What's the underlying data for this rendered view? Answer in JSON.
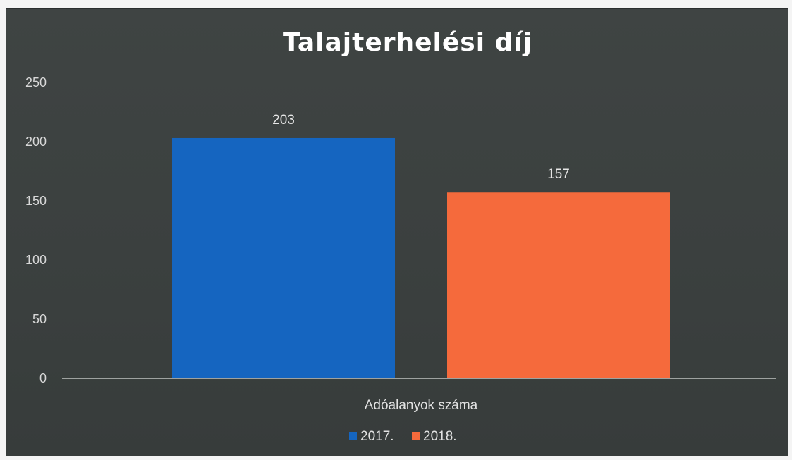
{
  "chart_data": {
    "type": "bar",
    "title": "Talajterhelési díj",
    "categories": [
      "Adóalanyok száma"
    ],
    "series": [
      {
        "name": "2017.",
        "values": [
          203
        ],
        "color": "#1565c0"
      },
      {
        "name": "2018.",
        "values": [
          157
        ],
        "color": "#f56a3c"
      }
    ],
    "y_ticks": [
      0,
      50,
      100,
      150,
      200,
      250
    ],
    "ylim": [
      0,
      250
    ],
    "grid": false,
    "legend": "bottom",
    "data_labels": true
  }
}
